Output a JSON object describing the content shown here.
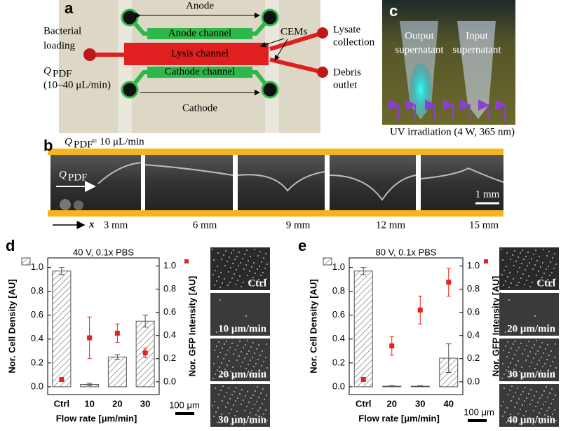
{
  "panel_a": {
    "label": "a",
    "anode": "Anode",
    "anode_channel": "Anode channel",
    "lysis_channel": "Lysis channel",
    "cathode_channel": "Cathode channel",
    "cathode": "Cathode",
    "cems": "CEMs",
    "loading": [
      "Bacterial",
      "loading"
    ],
    "flow_symbol": "Q",
    "flow_subscript": "PDF",
    "flow_range": "(10–40  μL/min)",
    "lysate": [
      "Lysate",
      "collection"
    ],
    "debris": [
      "Debris",
      "outlet"
    ]
  },
  "panel_b": {
    "label": "b",
    "flow_symbol": "Q",
    "flow_subscript": "PDF",
    "flow_value": "= 10 μL/min",
    "scale": "1 mm",
    "axis": "x",
    "positions": [
      "3 mm",
      "6 mm",
      "9 mm",
      "12 mm",
      "15 mm"
    ]
  },
  "panel_c": {
    "label": "c",
    "output": [
      "Output",
      "supernatant"
    ],
    "input": [
      "Input",
      "supernatant"
    ],
    "uv": "UV irradiation (4 W, 365 nm)"
  },
  "chart_data": [
    {
      "type": "bar",
      "label": "d",
      "title": "40 V, 0.1x PBS",
      "categories": [
        "Ctrl",
        "10",
        "20",
        "30"
      ],
      "xlabel": "Flow rate [μm/min]",
      "ylabel": "Nor. Cell Density [AU]",
      "y2label": "Nor. GFP Intensity [AU]",
      "ylim": [
        -0.065,
        1.08
      ],
      "yticks": [
        {
          "value": 0,
          "label": "0.0"
        },
        0.2,
        0.4,
        0.6,
        0.8,
        {
          "value": 1,
          "label": "1.0"
        }
      ],
      "y2lim": [
        -0.11,
        1.07
      ],
      "y2ticks": [
        {
          "value": 0,
          "label": "0.0"
        },
        0.2,
        0.4,
        0.6,
        0.8,
        {
          "value": 1,
          "label": "1.0"
        }
      ],
      "series": [
        {
          "type": "bar",
          "pattern": "hatch",
          "color": "#555555",
          "values": [
            0.97,
            0.02,
            0.25,
            0.55
          ],
          "errors": [
            0.03,
            0.01,
            0.02,
            0.05
          ]
        },
        {
          "type": "scatter",
          "axis": "y2",
          "color": "#e8201e",
          "values": [
            0.02,
            0.38,
            0.42,
            0.25
          ],
          "errors": [
            0.01,
            0.18,
            0.08,
            0.04
          ]
        }
      ],
      "images": [
        "Ctrl",
        "10 μm/min",
        "20 μm/min",
        "30 μm/min"
      ],
      "scale_bar": "100 μm"
    },
    {
      "type": "bar",
      "label": "e",
      "title": "80 V, 0.1x PBS",
      "categories": [
        "Ctrl",
        "20",
        "30",
        "40"
      ],
      "xlabel": "Flow rate [μm/min]",
      "ylabel": "Nor. Cell Density [AU]",
      "y2label": "Nor. GFP Intensity [AU]",
      "ylim": [
        -0.065,
        1.08
      ],
      "yticks": [
        {
          "value": 0,
          "label": "0.0"
        },
        0.2,
        0.4,
        0.6,
        0.8,
        {
          "value": 1,
          "label": "1.0"
        }
      ],
      "y2lim": [
        -0.11,
        1.07
      ],
      "y2ticks": [
        {
          "value": 0,
          "label": "0.0"
        },
        0.2,
        0.4,
        0.6,
        0.8,
        {
          "value": 1,
          "label": "1.0"
        }
      ],
      "series": [
        {
          "type": "bar",
          "pattern": "hatch",
          "color": "#555555",
          "values": [
            0.97,
            0.005,
            0.005,
            0.24
          ],
          "errors": [
            0.03,
            0.005,
            0.005,
            0.12
          ]
        },
        {
          "type": "scatter",
          "axis": "y2",
          "color": "#e8201e",
          "values": [
            0.02,
            0.31,
            0.62,
            0.86
          ],
          "errors": [
            0.01,
            0.08,
            0.12,
            0.12
          ]
        }
      ],
      "images": [
        "Ctrl",
        "20 μm/min",
        "30 μm/min",
        "40 μm/min"
      ],
      "scale_bar": "100 μm"
    }
  ]
}
